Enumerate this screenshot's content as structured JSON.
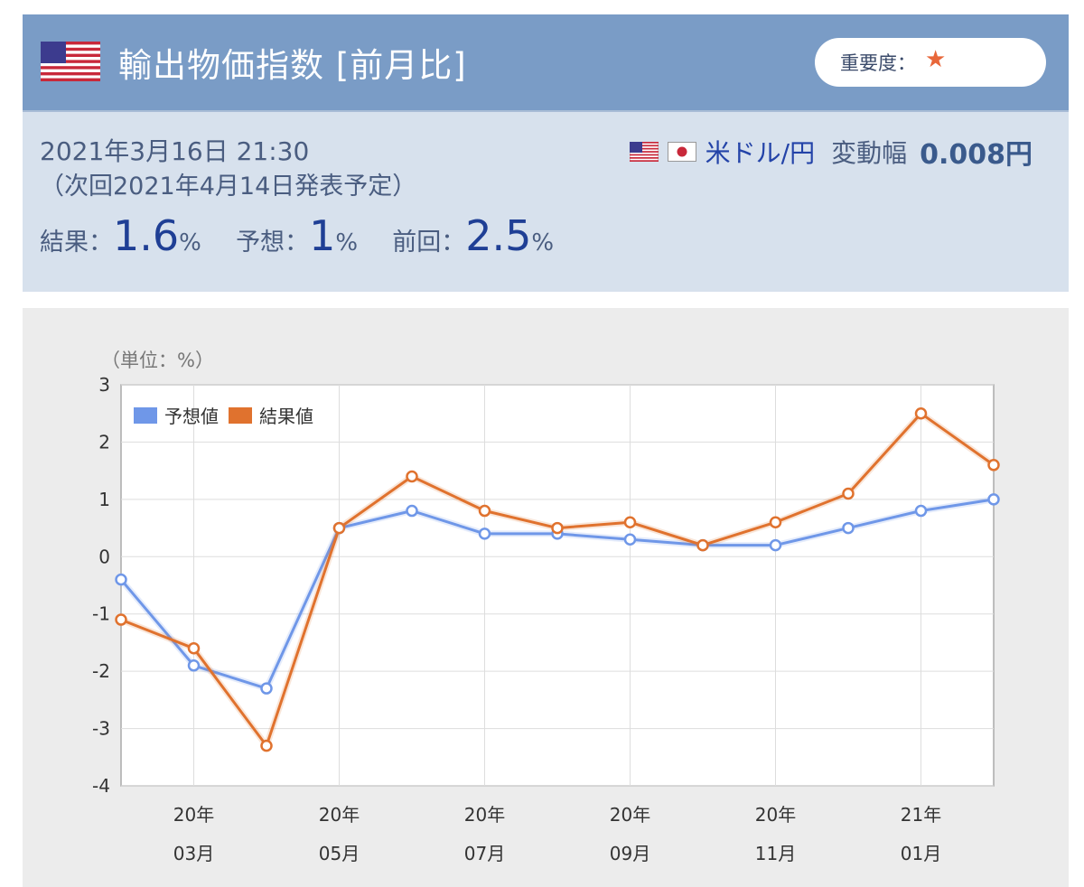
{
  "header": {
    "title": "輸出物価指数 [前月比]",
    "importance_label": "重要度：",
    "importance_star": "★",
    "flag_icon": "us-flag-icon"
  },
  "release": {
    "datetime": "2021年3月16日 21:30",
    "next": "（次回2021年4月14日発表予定）"
  },
  "results": {
    "result_label": "結果：",
    "result_value": "1.6",
    "forecast_label": "予想：",
    "forecast_value": "1",
    "previous_label": "前回：",
    "previous_value": "2.5",
    "unit": "%"
  },
  "fx": {
    "pair": "米ドル/円",
    "change_label": "変動幅",
    "change_value": "0.008円"
  },
  "colors": {
    "forecast": "#6f97e8",
    "result": "#e0722e",
    "header_bg": "#7a9cc6",
    "info_bg": "#d7e1ed"
  },
  "chart_data": {
    "type": "line",
    "unit_label": "（単位：%）",
    "ylim": [
      -4,
      3
    ],
    "yticks": [
      "3",
      "2",
      "1",
      "0",
      "-1",
      "-2",
      "-3",
      "-4"
    ],
    "xtick_labels": [
      {
        "year": "20年",
        "month": "03月"
      },
      {
        "year": "20年",
        "month": "05月"
      },
      {
        "year": "20年",
        "month": "07月"
      },
      {
        "year": "20年",
        "month": "09月"
      },
      {
        "year": "20年",
        "month": "11月"
      },
      {
        "year": "21年",
        "month": "01月"
      }
    ],
    "legend_position": "top-left",
    "grid": true,
    "x": [
      "2020-02",
      "2020-03",
      "2020-04",
      "2020-05",
      "2020-06",
      "2020-07",
      "2020-08",
      "2020-09",
      "2020-10",
      "2020-11",
      "2020-12",
      "2021-01",
      "2021-02"
    ],
    "series": [
      {
        "name": "予想値",
        "values": [
          -0.4,
          -1.9,
          -2.3,
          0.5,
          0.8,
          0.4,
          0.4,
          0.3,
          0.2,
          0.2,
          0.5,
          0.8,
          1.0
        ]
      },
      {
        "name": "結果値",
        "values": [
          -1.1,
          -1.6,
          -3.3,
          0.5,
          1.4,
          0.8,
          0.5,
          0.6,
          0.2,
          0.6,
          1.1,
          2.5,
          1.6
        ]
      }
    ]
  }
}
